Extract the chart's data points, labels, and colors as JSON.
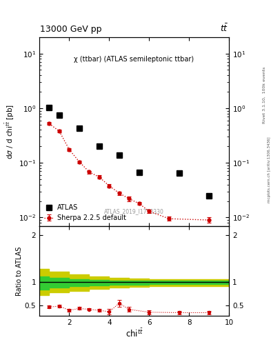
{
  "title_top": "13000 GeV pp",
  "title_top_right": "tt",
  "plot_title": "χ (ttbar) (ATLAS semileptonic ttbar)",
  "ylabel_main": "dσ / d chi^{tbart} [pb]",
  "ylabel_ratio": "Ratio to ATLAS",
  "xlabel": "chi^{tbart}",
  "watermark": "ATLAS_2019_I1750330",
  "right_label": "mcplots.cern.ch [arXiv:1306.3436]",
  "right_label2": "Rivet 3.1.10,  100k events",
  "atlas_x": [
    1.0,
    1.5,
    2.5,
    3.5,
    4.5,
    5.5,
    7.5,
    9.0
  ],
  "atlas_y": [
    1.02,
    0.75,
    0.43,
    0.2,
    0.14,
    0.067,
    0.065,
    0.025
  ],
  "sherpa_x": [
    1.0,
    1.5,
    2.0,
    2.5,
    3.0,
    3.5,
    4.0,
    4.5,
    5.0,
    5.5,
    6.0,
    7.0,
    9.0
  ],
  "sherpa_y": [
    0.52,
    0.38,
    0.175,
    0.105,
    0.068,
    0.055,
    0.038,
    0.028,
    0.022,
    0.018,
    0.013,
    0.0095,
    0.009
  ],
  "sherpa_ye": [
    0.03,
    0.02,
    0.01,
    0.006,
    0.004,
    0.004,
    0.003,
    0.002,
    0.002,
    0.001,
    0.001,
    0.0008,
    0.001
  ],
  "ratio_x": [
    1.0,
    1.5,
    2.0,
    2.5,
    3.0,
    3.5,
    4.0,
    4.5,
    5.0,
    6.0,
    7.5,
    9.0
  ],
  "ratio_y": [
    0.47,
    0.49,
    0.4,
    0.44,
    0.42,
    0.4,
    0.37,
    0.55,
    0.42,
    0.36,
    0.35,
    0.35
  ],
  "ratio_ye": [
    0.03,
    0.03,
    0.025,
    0.03,
    0.025,
    0.03,
    0.06,
    0.075,
    0.05,
    0.045,
    0.035,
    0.04
  ],
  "yellow_band_edges": [
    0.5,
    1.0,
    2.0,
    3.0,
    4.0,
    5.0,
    6.0,
    7.0,
    10.0
  ],
  "yellow_lo": [
    0.72,
    0.78,
    0.82,
    0.86,
    0.88,
    0.9,
    0.92,
    0.92,
    0.92
  ],
  "yellow_hi": [
    1.28,
    1.22,
    1.16,
    1.12,
    1.1,
    1.08,
    1.06,
    1.06,
    1.06
  ],
  "green_band_edges": [
    0.5,
    1.0,
    2.0,
    3.0,
    4.0,
    5.0,
    6.0,
    7.0,
    10.0
  ],
  "green_lo": [
    0.85,
    0.88,
    0.91,
    0.93,
    0.94,
    0.95,
    0.96,
    0.96,
    0.96
  ],
  "green_hi": [
    1.12,
    1.1,
    1.07,
    1.05,
    1.04,
    1.03,
    1.03,
    1.03,
    1.03
  ],
  "xlim": [
    0.5,
    10.0
  ],
  "ylim_main": [
    0.007,
    20.0
  ],
  "ylim_ratio": [
    0.28,
    2.2
  ],
  "color_atlas": "#000000",
  "color_sherpa": "#cc0000",
  "color_green": "#33cc33",
  "color_yellow": "#cccc00",
  "bg_color": "#ffffff"
}
